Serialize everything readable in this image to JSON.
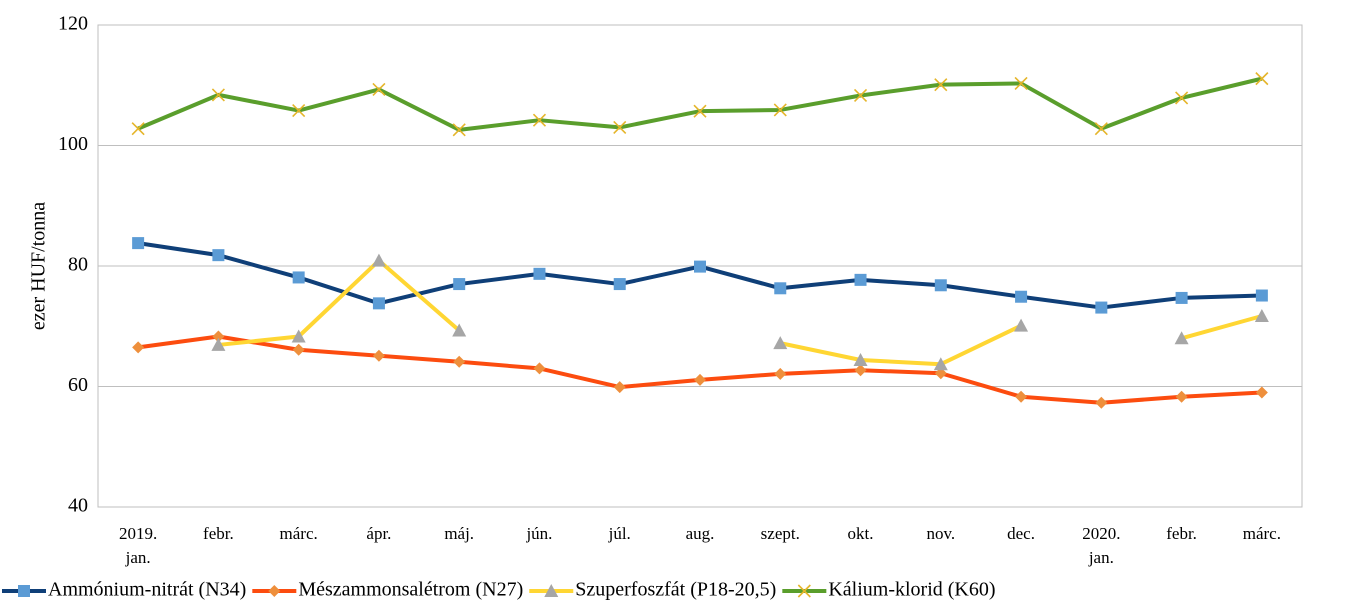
{
  "chart_data": {
    "type": "line",
    "y_label": "ezer HUF/tonna",
    "categories": [
      "2019. jan.",
      "febr.",
      "márc.",
      "ápr.",
      "máj.",
      "jún.",
      "júl.",
      "aug.",
      "szept.",
      "okt.",
      "nov.",
      "dec.",
      "2020. jan.",
      "febr.",
      "márc."
    ],
    "series": [
      {
        "name": "Ammónium-nitrát (N34)",
        "color": "#0f3f78",
        "marker": "square",
        "marker_color": "#5b9bd5",
        "values": [
          83.8,
          81.8,
          78.1,
          73.8,
          77.0,
          78.7,
          77.0,
          79.9,
          76.3,
          77.7,
          76.8,
          74.9,
          73.1,
          74.7,
          75.1
        ]
      },
      {
        "name": "Mészammonsalétrom (N27)",
        "color": "#fc4c0f",
        "marker": "diamond",
        "marker_color": "#ee8f3c",
        "values": [
          66.5,
          68.3,
          66.1,
          65.1,
          64.1,
          63.0,
          59.9,
          61.1,
          62.1,
          62.7,
          62.2,
          58.3,
          57.3,
          58.3,
          59.0
        ]
      },
      {
        "name": "Szuperfoszfát (P18-20,5)",
        "color": "#ffd633",
        "marker": "triangle",
        "marker_color": "#a6a6a6",
        "values": [
          null,
          66.9,
          68.3,
          80.9,
          69.3,
          null,
          null,
          null,
          67.2,
          64.4,
          63.7,
          70.1,
          null,
          68.0,
          71.7
        ]
      },
      {
        "name": "Kálium-klorid (K60)",
        "color": "#5a9e2c",
        "marker": "x",
        "marker_color": "#e5b52a",
        "values": [
          102.8,
          108.4,
          105.8,
          109.3,
          102.6,
          104.2,
          103.0,
          105.7,
          105.9,
          108.3,
          110.1,
          110.3,
          102.8,
          107.9,
          111.1
        ]
      }
    ],
    "ylim": [
      40,
      120
    ],
    "yticks": [
      40,
      60,
      80,
      100,
      120
    ],
    "grid": true,
    "legend": "bottom"
  }
}
